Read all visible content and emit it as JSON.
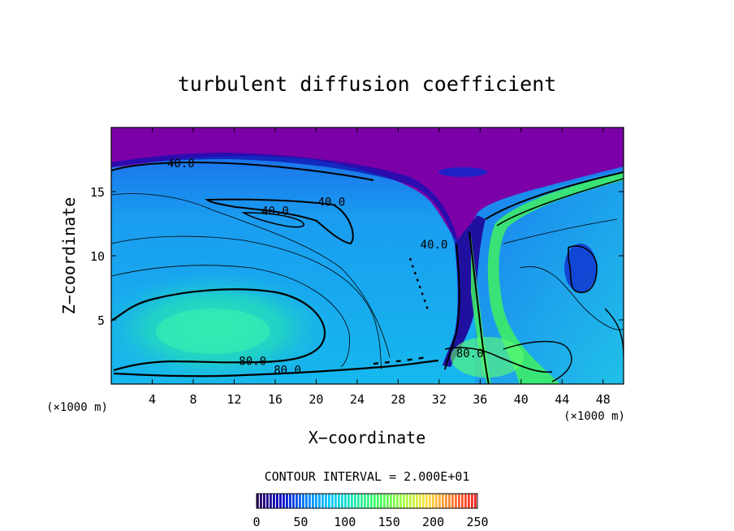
{
  "chart_data": {
    "type": "heatmap",
    "title": "turbulent diffusion coefficient",
    "xlabel": "X−coordinate",
    "ylabel": "Z−coordinate",
    "x_unit_left": "(×1000 m)",
    "x_unit_right": "(×1000 m)",
    "xlim": [
      0,
      50
    ],
    "ylim": [
      0,
      20
    ],
    "x_ticks": [
      4,
      8,
      12,
      16,
      20,
      24,
      28,
      32,
      36,
      40,
      44,
      48
    ],
    "y_ticks": [
      5,
      10,
      15
    ],
    "grid": false,
    "contour_interval_text": "CONTOUR INTERVAL = 2.000E+01",
    "contour_labels": [
      {
        "text": "40.0",
        "x": 6.8,
        "z": 17.2
      },
      {
        "text": "40.0",
        "x": 21.5,
        "z": 14.2
      },
      {
        "text": "40.0",
        "x": 16.0,
        "z": 13.5
      },
      {
        "text": "40.0",
        "x": 31.5,
        "z": 10.9
      },
      {
        "text": "80.0",
        "x": 13.8,
        "z": 1.8
      },
      {
        "text": "80.0",
        "x": 17.2,
        "z": 1.1
      },
      {
        "text": "80.0",
        "x": 35.0,
        "z": 2.4
      }
    ],
    "colorbar": {
      "ticks": [
        0,
        50,
        100,
        150,
        200,
        250
      ],
      "range": [
        0,
        250
      ],
      "colors": [
        "#2a0060",
        "#0000c8",
        "#0080ff",
        "#00c8ff",
        "#20e8b0",
        "#40ff60",
        "#a0ff40",
        "#ffe040",
        "#ff8030",
        "#ff2020"
      ]
    },
    "field_colors": {
      "top_layer": "#7b00a8",
      "background_low": "#1cb4f0",
      "core_high": "#2ee8b0",
      "plume": "#40f060"
    }
  }
}
